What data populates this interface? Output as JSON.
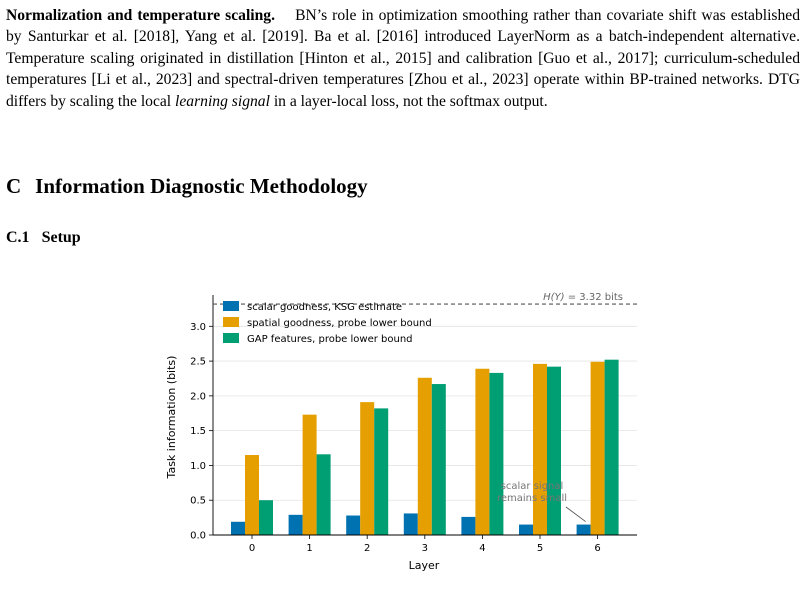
{
  "paragraph": {
    "heading": "Normalization and temperature scaling.",
    "text_before_em": "BN’s role in optimization smoothing rather than covariate shift was established by Santurkar et al. [2018], Yang et al. [2019]. Ba et al. [2016] introduced LayerNorm as a batch-independent alternative. Temperature scaling originated in distillation [Hinton et al., 2015] and calibration [Guo et al., 2017]; curriculum-scheduled temperatures [Li et al., 2023] and spectral-driven temperatures [Zhou et al., 2023] operate within BP-trained networks. DTG differs by scaling the local",
    "em": "learning signal",
    "text_after_em": "in a layer-local loss, not the softmax output."
  },
  "section": {
    "number": "C",
    "title": "Information Diagnostic Methodology"
  },
  "subsection": {
    "number": "C.1",
    "title": "Setup"
  },
  "chart_data": {
    "type": "bar",
    "categories": [
      "0",
      "1",
      "2",
      "3",
      "4",
      "5",
      "6"
    ],
    "xlabel": "Layer",
    "ylabel": "Task information (bits)",
    "ylim": [
      0,
      3.45
    ],
    "yticks": [
      "0.0",
      "0.5",
      "1.0",
      "1.5",
      "2.0",
      "2.5",
      "3.0"
    ],
    "grid": true,
    "legend_position": "top-left",
    "series": [
      {
        "name": "scalar goodness, KSG estimate",
        "color": "#0072b2",
        "values": [
          0.19,
          0.29,
          0.28,
          0.31,
          0.26,
          0.15,
          0.15
        ]
      },
      {
        "name": "spatial goodness, probe lower bound",
        "color": "#e69f00",
        "values": [
          1.15,
          1.73,
          1.91,
          2.26,
          2.39,
          2.46,
          2.49
        ]
      },
      {
        "name": "GAP features, probe lower bound",
        "color": "#009e73",
        "values": [
          0.5,
          1.16,
          1.82,
          2.17,
          2.33,
          2.42,
          2.52
        ]
      }
    ],
    "reference_line": {
      "value": 3.32,
      "label_prefix": "H(Y)",
      "label_suffix": " = 3.32 bits"
    },
    "annotation": {
      "line1": "scalar signal",
      "line2": "remains small"
    }
  }
}
